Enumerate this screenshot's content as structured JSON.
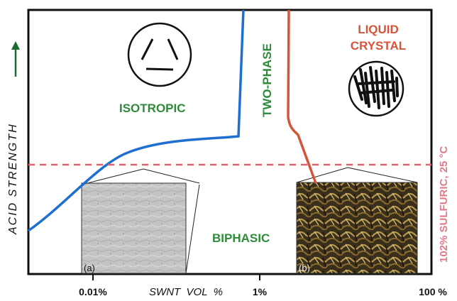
{
  "y_axis": {
    "label": "ACID STRENGTH",
    "arrow_color": "#1a6b2e"
  },
  "x_axis": {
    "label": "SWNT  VOL  %",
    "ticks": [
      "0.01%",
      "1%",
      "100 %"
    ]
  },
  "right_label": "102% SULFURIC, 25 °C",
  "regions": {
    "isotropic": "ISOTROPIC",
    "two_phase": "TWO-PHASE",
    "liquid_crystal_line1": "LIQUID",
    "liquid_crystal_line2": "CRYSTAL",
    "biphasic": "BIPHASIC"
  },
  "insets": {
    "a_label": "(a)",
    "b_label": "(b)"
  },
  "colors": {
    "isotropic_boundary": "#1e6fd0",
    "liquid_crystal_boundary": "#d6543a",
    "sulfuric_line": "#e0606f",
    "region_text": "#2e8b3a",
    "liquid_crystal_text": "#d6543a",
    "right_label": "#e07a8a"
  }
}
